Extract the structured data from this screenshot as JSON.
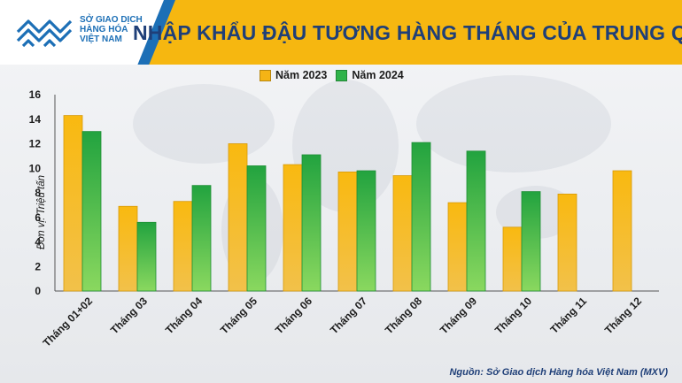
{
  "header": {
    "title": "NHẬP KHẨU ĐẬU TƯƠNG HÀNG THÁNG CỦA TRUNG QUỐC",
    "logo_lines": [
      "SỞ GIAO DỊCH",
      "HÀNG HÓA",
      "VIỆT NAM"
    ]
  },
  "footer": {
    "source": "Nguồn: Sở Giao dịch Hàng hóa Việt Nam (MXV)"
  },
  "colors": {
    "bar_2023": "#f5b415",
    "bar_2024": "#2fb34a",
    "header": "#f6b710",
    "title": "#1f3f78",
    "logo_blue": "#1c6fb6"
  },
  "chart_data": {
    "type": "bar",
    "title": "NHẬP KHẨU ĐẬU TƯƠNG HÀNG THÁNG CỦA TRUNG QUỐC",
    "xlabel": "",
    "ylabel": "Đơn vị: Triệu tấn",
    "ylim": [
      0,
      16
    ],
    "yticks": [
      0,
      2,
      4,
      6,
      8,
      10,
      12,
      14,
      16
    ],
    "grid": false,
    "legend_position": "top-center",
    "categories": [
      "Tháng 01+02",
      "Tháng 03",
      "Tháng 04",
      "Tháng 05",
      "Tháng 06",
      "Tháng 07",
      "Tháng 08",
      "Tháng 09",
      "Tháng 10",
      "Tháng 11",
      "Tháng 12"
    ],
    "series": [
      {
        "name": "Năm 2023",
        "values": [
          14.3,
          6.9,
          7.3,
          12.0,
          10.3,
          9.7,
          9.4,
          7.2,
          5.2,
          7.9,
          9.8
        ]
      },
      {
        "name": "Năm 2024",
        "values": [
          13.0,
          5.6,
          8.6,
          10.2,
          11.1,
          9.8,
          12.1,
          11.4,
          8.1,
          null,
          null
        ]
      }
    ]
  }
}
